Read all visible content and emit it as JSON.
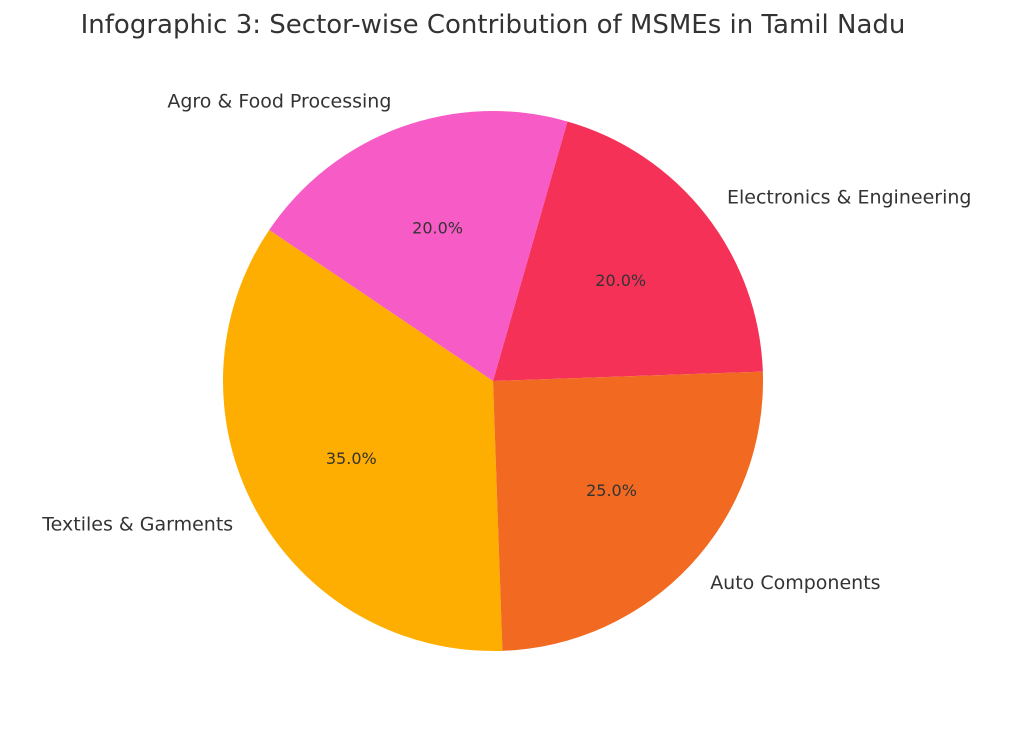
{
  "chart_data": {
    "type": "pie",
    "title": "Infographic 3: Sector-wise Contribution of MSMEs in Tamil Nadu",
    "slices": [
      {
        "label": "Electronics & Engineering",
        "value": 20.0,
        "pct_label": "20.0%",
        "color": "#f53158"
      },
      {
        "label": "Agro & Food Processing",
        "value": 20.0,
        "pct_label": "20.0%",
        "color": "#f75bc6"
      },
      {
        "label": "Textiles & Garments",
        "value": 35.0,
        "pct_label": "35.0%",
        "color": "#feae00"
      },
      {
        "label": "Auto Components",
        "value": 25.0,
        "pct_label": "25.0%",
        "color": "#f26a21"
      }
    ],
    "start_angle_deg": 2,
    "direction": "counterclockwise",
    "legend": "none"
  }
}
